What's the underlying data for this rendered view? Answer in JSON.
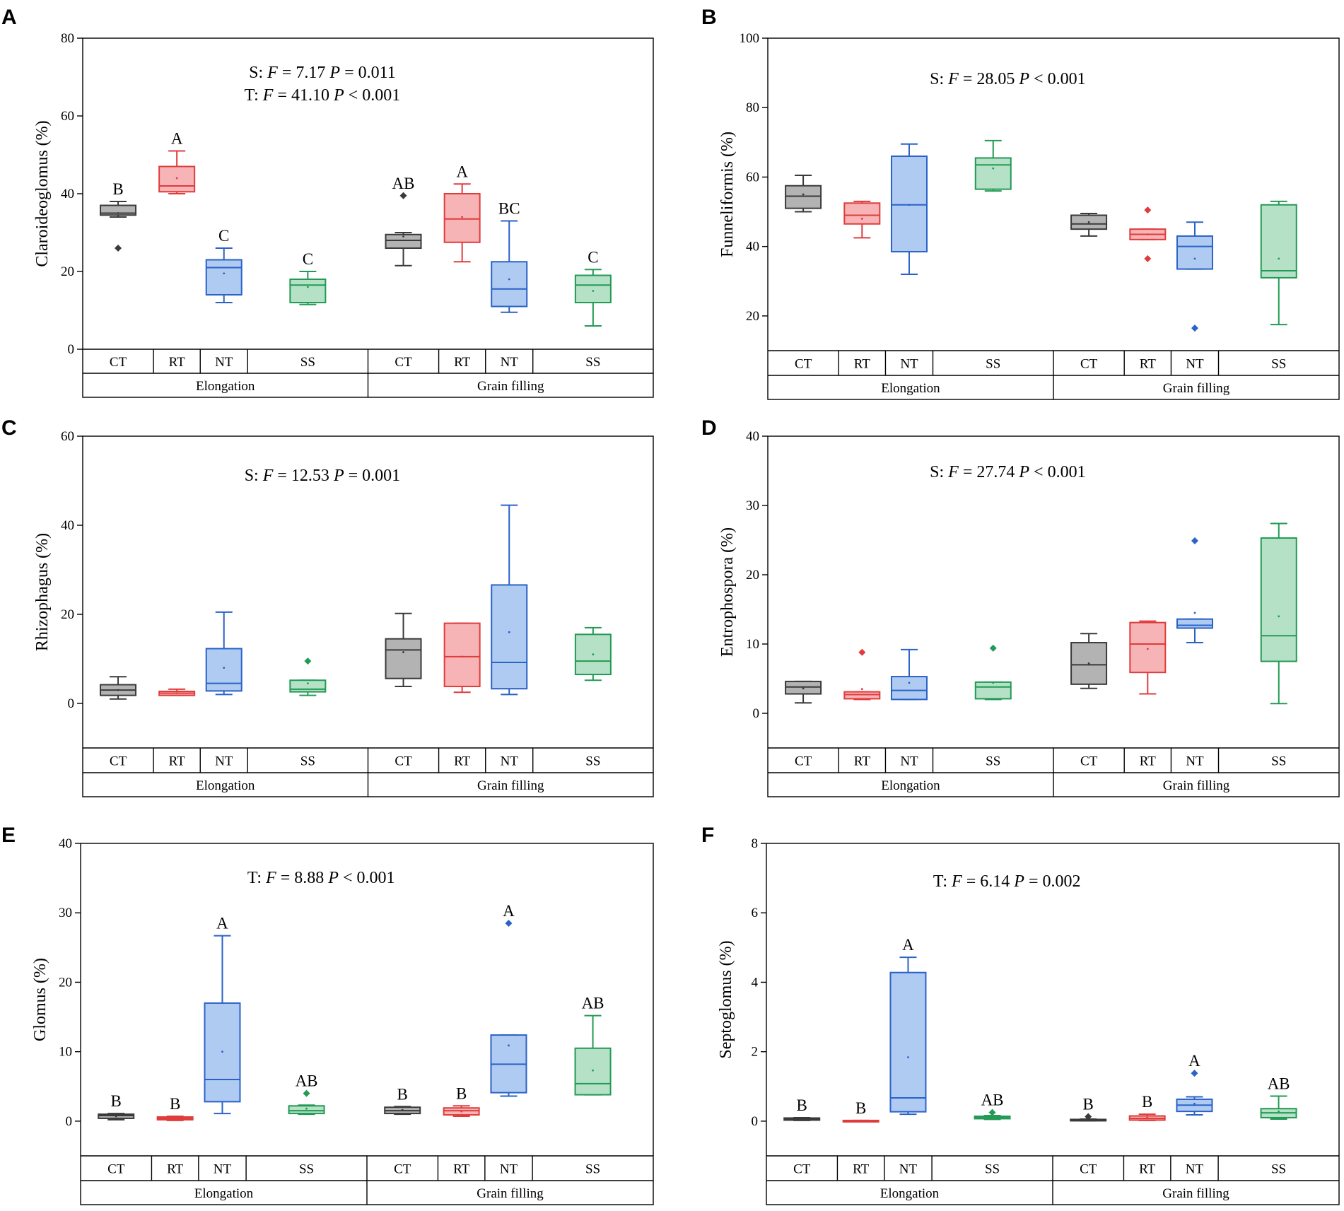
{
  "colors": {
    "CT": {
      "stroke": "#3a3a3a",
      "fill": "#b3b3b3"
    },
    "RT": {
      "stroke": "#e03c3c",
      "fill": "#f6b4b6"
    },
    "NT": {
      "stroke": "#2a62c8",
      "fill": "#b0cbf2"
    },
    "SS": {
      "stroke": "#239a55",
      "fill": "#b5e2c7"
    }
  },
  "chart_data": [
    {
      "panel": "A",
      "type": "box",
      "ylabel": "Claroideoglomus (%)",
      "ylim": [
        0,
        80
      ],
      "yticks": [
        0,
        20,
        40,
        60,
        80
      ],
      "stat_lines": [
        {
          "pre": "S: ",
          "F": "7.17",
          "P": "0.011",
          "pop": "="
        },
        {
          "pre": "T: ",
          "F": "41.10",
          "P": "0.001",
          "pop": "<"
        }
      ],
      "stages": [
        "Elongation",
        "Grain filling"
      ],
      "boxes": [
        {
          "stage": "Elongation",
          "cat": "CT",
          "min": 34,
          "q1": 34.5,
          "med": 35,
          "q3": 37,
          "max": 38,
          "mean": 35,
          "outliers": [
            26
          ],
          "letter": "B"
        },
        {
          "stage": "Elongation",
          "cat": "RT",
          "min": 40,
          "q1": 40.5,
          "med": 42,
          "q3": 47,
          "max": 51,
          "mean": 44,
          "outliers": [],
          "letter": "A"
        },
        {
          "stage": "Elongation",
          "cat": "NT",
          "min": 12,
          "q1": 14,
          "med": 21,
          "q3": 23,
          "max": 26,
          "mean": 19.5,
          "outliers": [],
          "letter": "C"
        },
        {
          "stage": "Elongation",
          "cat": "SS",
          "min": 11.5,
          "q1": 12,
          "med": 16.5,
          "q3": 18,
          "max": 20,
          "mean": 16,
          "outliers": [],
          "letter": "C"
        },
        {
          "stage": "Grain filling",
          "cat": "CT",
          "min": 21.5,
          "q1": 26,
          "med": 28,
          "q3": 29.5,
          "max": 30,
          "mean": 29,
          "outliers": [
            39.5
          ],
          "letter": "AB"
        },
        {
          "stage": "Grain filling",
          "cat": "RT",
          "min": 22.5,
          "q1": 27.5,
          "med": 33.5,
          "q3": 40,
          "max": 42.5,
          "mean": 34,
          "outliers": [],
          "letter": "A"
        },
        {
          "stage": "Grain filling",
          "cat": "NT",
          "min": 9.5,
          "q1": 11,
          "med": 15.5,
          "q3": 22.5,
          "max": 33,
          "mean": 18,
          "outliers": [],
          "letter": "BC"
        },
        {
          "stage": "Grain filling",
          "cat": "SS",
          "min": 6,
          "q1": 12,
          "med": 16.5,
          "q3": 19,
          "max": 20.5,
          "mean": 15,
          "outliers": [],
          "letter": "C"
        }
      ]
    },
    {
      "panel": "B",
      "type": "box",
      "ylabel": "Funneliformis (%)",
      "ylim": [
        10,
        100
      ],
      "yticks": [
        20,
        40,
        60,
        80,
        100
      ],
      "stat_lines": [
        {
          "pre": "S: ",
          "F": "28.05",
          "P": "0.001",
          "pop": "<"
        }
      ],
      "stages": [
        "Elongation",
        "Grain filling"
      ],
      "boxes": [
        {
          "stage": "Elongation",
          "cat": "CT",
          "min": 50,
          "q1": 51,
          "med": 54.5,
          "q3": 57.5,
          "max": 60.5,
          "mean": 55,
          "outliers": [],
          "letter": ""
        },
        {
          "stage": "Elongation",
          "cat": "RT",
          "min": 42.5,
          "q1": 46.5,
          "med": 49,
          "q3": 52.5,
          "max": 53,
          "mean": 48,
          "outliers": [],
          "letter": ""
        },
        {
          "stage": "Elongation",
          "cat": "NT",
          "min": 32,
          "q1": 38.5,
          "med": 52,
          "q3": 66,
          "max": 69.5,
          "mean": 52,
          "outliers": [],
          "letter": ""
        },
        {
          "stage": "Elongation",
          "cat": "SS",
          "min": 56,
          "q1": 56.5,
          "med": 63.5,
          "q3": 65.5,
          "max": 70.5,
          "mean": 62.5,
          "outliers": [],
          "letter": ""
        },
        {
          "stage": "Grain filling",
          "cat": "CT",
          "min": 43,
          "q1": 45,
          "med": 46.5,
          "q3": 49,
          "max": 49.5,
          "mean": 47,
          "outliers": [],
          "letter": ""
        },
        {
          "stage": "Grain filling",
          "cat": "RT",
          "min": 42,
          "q1": 42,
          "med": 43.5,
          "q3": 45,
          "max": 45,
          "mean": 43.5,
          "outliers": [
            36.5,
            50.5
          ],
          "letter": ""
        },
        {
          "stage": "Grain filling",
          "cat": "NT",
          "min": 33.5,
          "q1": 33.5,
          "med": 40,
          "q3": 43,
          "max": 47,
          "mean": 36.5,
          "outliers": [
            16.5
          ],
          "letter": ""
        },
        {
          "stage": "Grain filling",
          "cat": "SS",
          "min": 17.5,
          "q1": 31,
          "med": 33,
          "q3": 52,
          "max": 53,
          "mean": 36.5,
          "outliers": [],
          "letter": ""
        }
      ]
    },
    {
      "panel": "C",
      "type": "box",
      "ylabel": "Rhizophagus (%)",
      "ylim": [
        -10,
        60
      ],
      "yticks": [
        0,
        20,
        40,
        60
      ],
      "stat_lines": [
        {
          "pre": "S: ",
          "F": "12.53",
          "P": "0.001",
          "pop": "="
        }
      ],
      "stages": [
        "Elongation",
        "Grain filling"
      ],
      "boxes": [
        {
          "stage": "Elongation",
          "cat": "CT",
          "min": 1,
          "q1": 1.8,
          "med": 3,
          "q3": 4.2,
          "max": 6,
          "mean": 3,
          "outliers": [],
          "letter": ""
        },
        {
          "stage": "Elongation",
          "cat": "RT",
          "min": 1.8,
          "q1": 1.8,
          "med": 2.3,
          "q3": 2.7,
          "max": 3.2,
          "mean": 2.3,
          "outliers": [],
          "letter": ""
        },
        {
          "stage": "Elongation",
          "cat": "NT",
          "min": 2,
          "q1": 2.8,
          "med": 4.5,
          "q3": 12.3,
          "max": 20.5,
          "mean": 8,
          "outliers": [],
          "letter": ""
        },
        {
          "stage": "Elongation",
          "cat": "SS",
          "min": 1.8,
          "q1": 2.6,
          "med": 3.2,
          "q3": 5.2,
          "max": 5.2,
          "mean": 4.5,
          "outliers": [
            9.5
          ],
          "letter": ""
        },
        {
          "stage": "Grain filling",
          "cat": "CT",
          "min": 3.8,
          "q1": 5.6,
          "med": 12,
          "q3": 14.5,
          "max": 20.2,
          "mean": 11.5,
          "outliers": [],
          "letter": ""
        },
        {
          "stage": "Grain filling",
          "cat": "RT",
          "min": 2.5,
          "q1": 3.8,
          "med": 10.5,
          "q3": 18,
          "max": 18,
          "mean": 10.5,
          "outliers": [],
          "letter": ""
        },
        {
          "stage": "Grain filling",
          "cat": "NT",
          "min": 2,
          "q1": 3.3,
          "med": 9.2,
          "q3": 26.6,
          "max": 44.5,
          "mean": 16,
          "outliers": [],
          "letter": ""
        },
        {
          "stage": "Grain filling",
          "cat": "SS",
          "min": 5.2,
          "q1": 6.5,
          "med": 9.5,
          "q3": 15.5,
          "max": 17,
          "mean": 11,
          "outliers": [],
          "letter": ""
        }
      ]
    },
    {
      "panel": "D",
      "type": "box",
      "ylabel": "Entrophospora (%)",
      "ylim": [
        -5,
        40
      ],
      "yticks": [
        0,
        10,
        20,
        30,
        40
      ],
      "stat_lines": [
        {
          "pre": "S: ",
          "F": "27.74",
          "P": "0.001",
          "pop": "<"
        }
      ],
      "stages": [
        "Elongation",
        "Grain filling"
      ],
      "boxes": [
        {
          "stage": "Elongation",
          "cat": "CT",
          "min": 1.5,
          "q1": 2.8,
          "med": 3.8,
          "q3": 4.6,
          "max": 4.6,
          "mean": 3.6,
          "outliers": [],
          "letter": ""
        },
        {
          "stage": "Elongation",
          "cat": "RT",
          "min": 2,
          "q1": 2.1,
          "med": 2.7,
          "q3": 3.1,
          "max": 3.1,
          "mean": 3.5,
          "outliers": [
            8.8
          ],
          "letter": ""
        },
        {
          "stage": "Elongation",
          "cat": "NT",
          "min": 2,
          "q1": 2,
          "med": 3.3,
          "q3": 5.3,
          "max": 9.2,
          "mean": 4.4,
          "outliers": [],
          "letter": ""
        },
        {
          "stage": "Elongation",
          "cat": "SS",
          "min": 2,
          "q1": 2.1,
          "med": 3.8,
          "q3": 4.5,
          "max": 4.5,
          "mean": 4.4,
          "outliers": [
            9.4
          ],
          "letter": ""
        },
        {
          "stage": "Grain filling",
          "cat": "CT",
          "min": 3.6,
          "q1": 4.2,
          "med": 7,
          "q3": 10.2,
          "max": 11.5,
          "mean": 7.2,
          "outliers": [],
          "letter": ""
        },
        {
          "stage": "Grain filling",
          "cat": "RT",
          "min": 2.8,
          "q1": 5.9,
          "med": 10,
          "q3": 13.1,
          "max": 13.3,
          "mean": 9.3,
          "outliers": [],
          "letter": ""
        },
        {
          "stage": "Grain filling",
          "cat": "NT",
          "min": 10.2,
          "q1": 12.3,
          "med": 12.7,
          "q3": 13.6,
          "max": 13.6,
          "mean": 14.5,
          "outliers": [
            24.9
          ],
          "letter": ""
        },
        {
          "stage": "Grain filling",
          "cat": "SS",
          "min": 1.4,
          "q1": 7.5,
          "med": 11.2,
          "q3": 25.3,
          "max": 27.4,
          "mean": 14,
          "outliers": [],
          "letter": ""
        }
      ]
    },
    {
      "panel": "E",
      "type": "box",
      "ylabel": "Glomus (%)",
      "ylim": [
        -5,
        40
      ],
      "yticks": [
        0,
        10,
        20,
        30,
        40
      ],
      "stat_lines": [
        {
          "pre": "T: ",
          "F": "8.88",
          "P": "0.001",
          "pop": "<"
        }
      ],
      "stages": [
        "Elongation",
        "Grain filling"
      ],
      "boxes": [
        {
          "stage": "Elongation",
          "cat": "CT",
          "min": 0.2,
          "q1": 0.4,
          "med": 0.8,
          "q3": 1,
          "max": 1.1,
          "mean": 0.7,
          "outliers": [],
          "letter": "B"
        },
        {
          "stage": "Elongation",
          "cat": "RT",
          "min": 0.1,
          "q1": 0.2,
          "med": 0.4,
          "q3": 0.6,
          "max": 0.7,
          "mean": 0.4,
          "outliers": [],
          "letter": "B"
        },
        {
          "stage": "Elongation",
          "cat": "NT",
          "min": 1.1,
          "q1": 2.8,
          "med": 6,
          "q3": 17,
          "max": 26.7,
          "mean": 10,
          "outliers": [],
          "letter": "A"
        },
        {
          "stage": "Elongation",
          "cat": "SS",
          "min": 1,
          "q1": 1.1,
          "med": 1.5,
          "q3": 2.2,
          "max": 2.3,
          "mean": 1.8,
          "outliers": [
            4
          ],
          "letter": "AB"
        },
        {
          "stage": "Grain filling",
          "cat": "CT",
          "min": 1,
          "q1": 1.1,
          "med": 1.5,
          "q3": 2,
          "max": 2.1,
          "mean": 1.6,
          "outliers": [],
          "letter": "B"
        },
        {
          "stage": "Grain filling",
          "cat": "RT",
          "min": 0.7,
          "q1": 0.9,
          "med": 1.5,
          "q3": 1.9,
          "max": 2.2,
          "mean": 1.4,
          "outliers": [],
          "letter": "B"
        },
        {
          "stage": "Grain filling",
          "cat": "NT",
          "min": 3.6,
          "q1": 4.1,
          "med": 8.2,
          "q3": 12.4,
          "max": 12.4,
          "mean": 10.9,
          "outliers": [
            28.5
          ],
          "letter": "A"
        },
        {
          "stage": "Grain filling",
          "cat": "SS",
          "min": 3.8,
          "q1": 3.8,
          "med": 5.4,
          "q3": 10.5,
          "max": 15.2,
          "mean": 7.3,
          "outliers": [],
          "letter": "AB"
        }
      ]
    },
    {
      "panel": "F",
      "type": "box",
      "ylabel": "Septoglomus (%)",
      "ylim": [
        -1,
        8
      ],
      "yticks": [
        0,
        2,
        4,
        6,
        8
      ],
      "stat_lines": [
        {
          "pre": "T: ",
          "F": "6.14",
          "P": "0.002",
          "pop": "="
        }
      ],
      "stages": [
        "Elongation",
        "Grain filling"
      ],
      "boxes": [
        {
          "stage": "Elongation",
          "cat": "CT",
          "min": 0.02,
          "q1": 0.03,
          "med": 0.06,
          "q3": 0.09,
          "max": 0.1,
          "mean": 0.06,
          "outliers": [],
          "letter": "B"
        },
        {
          "stage": "Elongation",
          "cat": "RT",
          "min": 0,
          "q1": 0,
          "med": 0,
          "q3": 0.02,
          "max": 0.02,
          "mean": 0.01,
          "outliers": [],
          "letter": "B"
        },
        {
          "stage": "Elongation",
          "cat": "NT",
          "min": 0.2,
          "q1": 0.27,
          "med": 0.67,
          "q3": 4.28,
          "max": 4.72,
          "mean": 1.84,
          "outliers": [],
          "letter": "A"
        },
        {
          "stage": "Elongation",
          "cat": "SS",
          "min": 0.05,
          "q1": 0.07,
          "med": 0.1,
          "q3": 0.14,
          "max": 0.16,
          "mean": 0.12,
          "outliers": [
            0.25
          ],
          "letter": "AB"
        },
        {
          "stage": "Grain filling",
          "cat": "CT",
          "min": 0.01,
          "q1": 0.02,
          "med": 0.03,
          "q3": 0.05,
          "max": 0.06,
          "mean": 0.04,
          "outliers": [
            0.13
          ],
          "letter": "B"
        },
        {
          "stage": "Grain filling",
          "cat": "RT",
          "min": 0.02,
          "q1": 0.03,
          "med": 0.08,
          "q3": 0.15,
          "max": 0.2,
          "mean": 0.1,
          "outliers": [],
          "letter": "B"
        },
        {
          "stage": "Grain filling",
          "cat": "NT",
          "min": 0.18,
          "q1": 0.28,
          "med": 0.46,
          "q3": 0.63,
          "max": 0.7,
          "mean": 0.5,
          "outliers": [
            1.38
          ],
          "letter": "A"
        },
        {
          "stage": "Grain filling",
          "cat": "SS",
          "min": 0.06,
          "q1": 0.1,
          "med": 0.24,
          "q3": 0.36,
          "max": 0.72,
          "mean": 0.28,
          "outliers": [],
          "letter": "AB"
        }
      ]
    }
  ]
}
